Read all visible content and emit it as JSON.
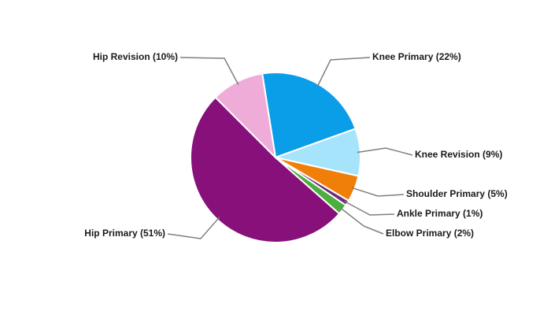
{
  "chart_data": {
    "type": "pie",
    "values": [
      22,
      9,
      5,
      1,
      2,
      51,
      10
    ],
    "value_labels": [
      "Knee Primary (22%)",
      "Knee Revision (9%)",
      "Shoulder Primary (5%)",
      "Ankle Primary (1%)",
      "Elbow Primary (2%)",
      "Hip Primary (51%)",
      "Hip Revision (10%)"
    ],
    "colors": [
      "#0a9ee8",
      "#a6e4fb",
      "#f07f09",
      "#6c2a7f",
      "#4cae3c",
      "#87107a",
      "#f0acd8"
    ]
  }
}
